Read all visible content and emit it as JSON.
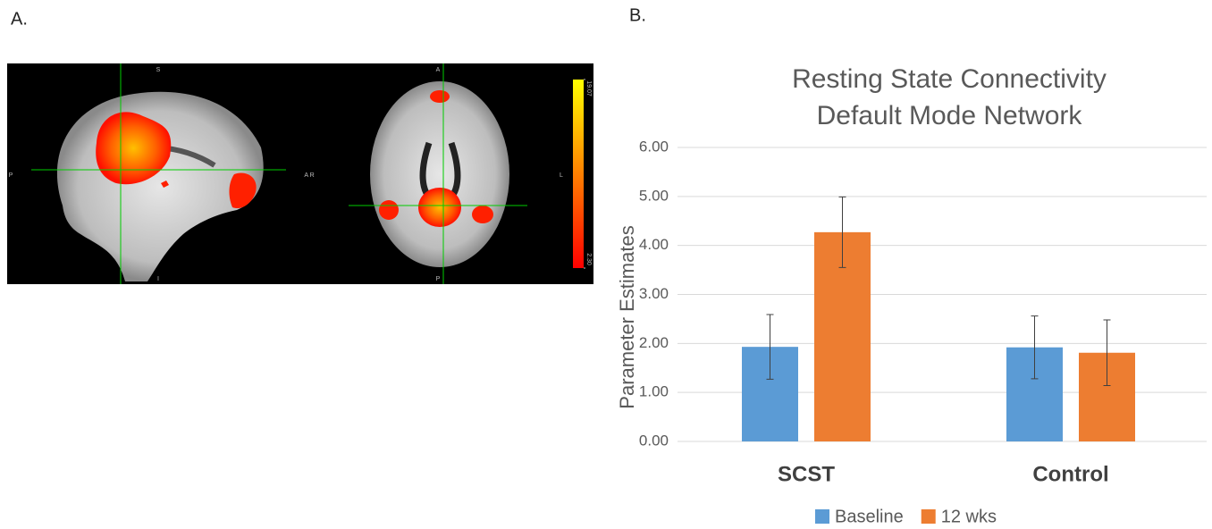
{
  "panel_a": {
    "label": "A.",
    "sagittal": {
      "top": "S",
      "bottom": "I",
      "left": "P",
      "right": "A R"
    },
    "axial": {
      "top": "A",
      "bottom": "P",
      "right": "L"
    },
    "colorbar": {
      "clim": [
        2.3,
        19.07
      ],
      "ticks": [
        {
          "value": 19.07,
          "label": "19.07"
        },
        {
          "value": 2.3,
          "label": "2.30"
        }
      ]
    }
  },
  "chart_data": {
    "type": "bar",
    "panel_label": "B.",
    "title": [
      "Resting State Connectivity",
      "Default Mode Network"
    ],
    "y_label": "Parameter Estimates",
    "categories": [
      "SCST",
      "Control"
    ],
    "series": [
      {
        "name": "Baseline",
        "color": "#5b9bd5",
        "values": [
          1.93,
          1.92
        ],
        "errors": [
          0.66,
          0.64
        ]
      },
      {
        "name": "12 wks",
        "color": "#ed7d31",
        "values": [
          4.27,
          1.81
        ],
        "errors": [
          0.72,
          0.67
        ]
      }
    ],
    "ylim": [
      0,
      6
    ],
    "yticks": [
      {
        "value": 0,
        "label": "0.00"
      },
      {
        "value": 1,
        "label": "1.00"
      },
      {
        "value": 2,
        "label": "2.00"
      },
      {
        "value": 3,
        "label": "3.00"
      },
      {
        "value": 4,
        "label": "4.00"
      },
      {
        "value": 5,
        "label": "5.00"
      },
      {
        "value": 6,
        "label": "6.00"
      }
    ],
    "grid": true,
    "legend": "bottom"
  }
}
